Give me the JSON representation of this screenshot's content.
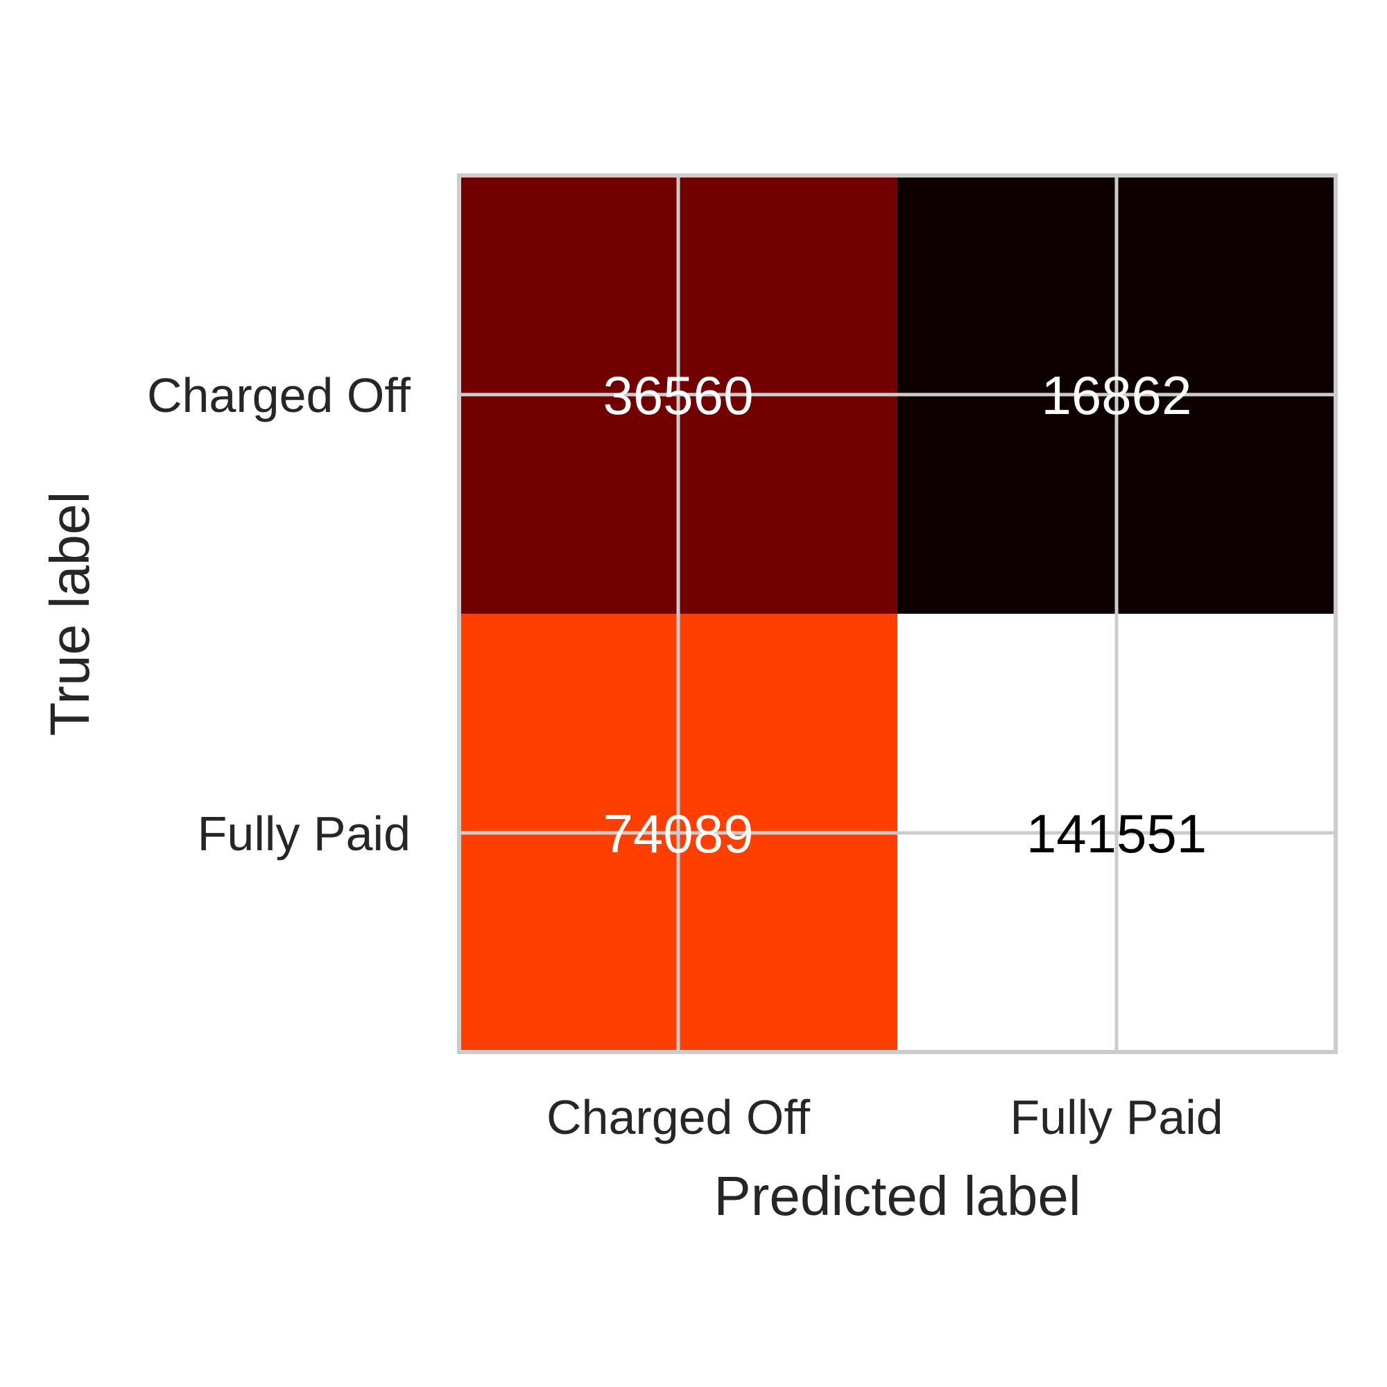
{
  "chart_data": {
    "type": "heatmap",
    "title": "",
    "xlabel": "Predicted label",
    "ylabel": "True label",
    "x_categories": [
      "Charged Off",
      "Fully Paid"
    ],
    "y_categories": [
      "Charged Off",
      "Fully Paid"
    ],
    "values": [
      [
        36560,
        16862
      ],
      [
        74089,
        141551
      ]
    ],
    "value_labels": [
      [
        "36560",
        "16862"
      ],
      [
        "74089",
        "141551"
      ]
    ],
    "cell_colors": [
      [
        "#720000",
        "#0e0000"
      ],
      [
        "#ff3f00",
        "#ffffff"
      ]
    ],
    "label_colors": [
      [
        "#ffffff",
        "#ffffff"
      ],
      [
        "#ffffff",
        "#000000"
      ]
    ],
    "colormap": "hot",
    "grid": true,
    "grid_color": "#cccccc",
    "colorbar": false
  }
}
